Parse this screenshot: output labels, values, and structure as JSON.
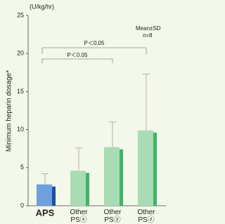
{
  "chart_data": {
    "type": "bar",
    "unit_label": "(U/kg/hr)",
    "y_label": "Minimum heparin dosage*",
    "categories": [
      "APS",
      "Other PSⓧ",
      "Other PSⓨ",
      "Other PSⓩ"
    ],
    "values": [
      2.8,
      4.6,
      7.7,
      9.9
    ],
    "errors": [
      1.4,
      3.0,
      3.3,
      7.4
    ],
    "colors": [
      "#6f9fdc",
      "#a9dbb4",
      "#a9dbb4",
      "#a9dbb4"
    ],
    "side_colors": [
      "#1d4fa6",
      "#3db565",
      "#3db565",
      "#3db565"
    ],
    "error_color": "#b0b0b0",
    "ylim": [
      0,
      25
    ],
    "yticks": [
      0,
      5,
      10,
      15,
      20,
      25
    ],
    "annotations": [
      "Mean±SD",
      "n=8",
      "P＜0.05",
      "P＜0.05"
    ]
  }
}
